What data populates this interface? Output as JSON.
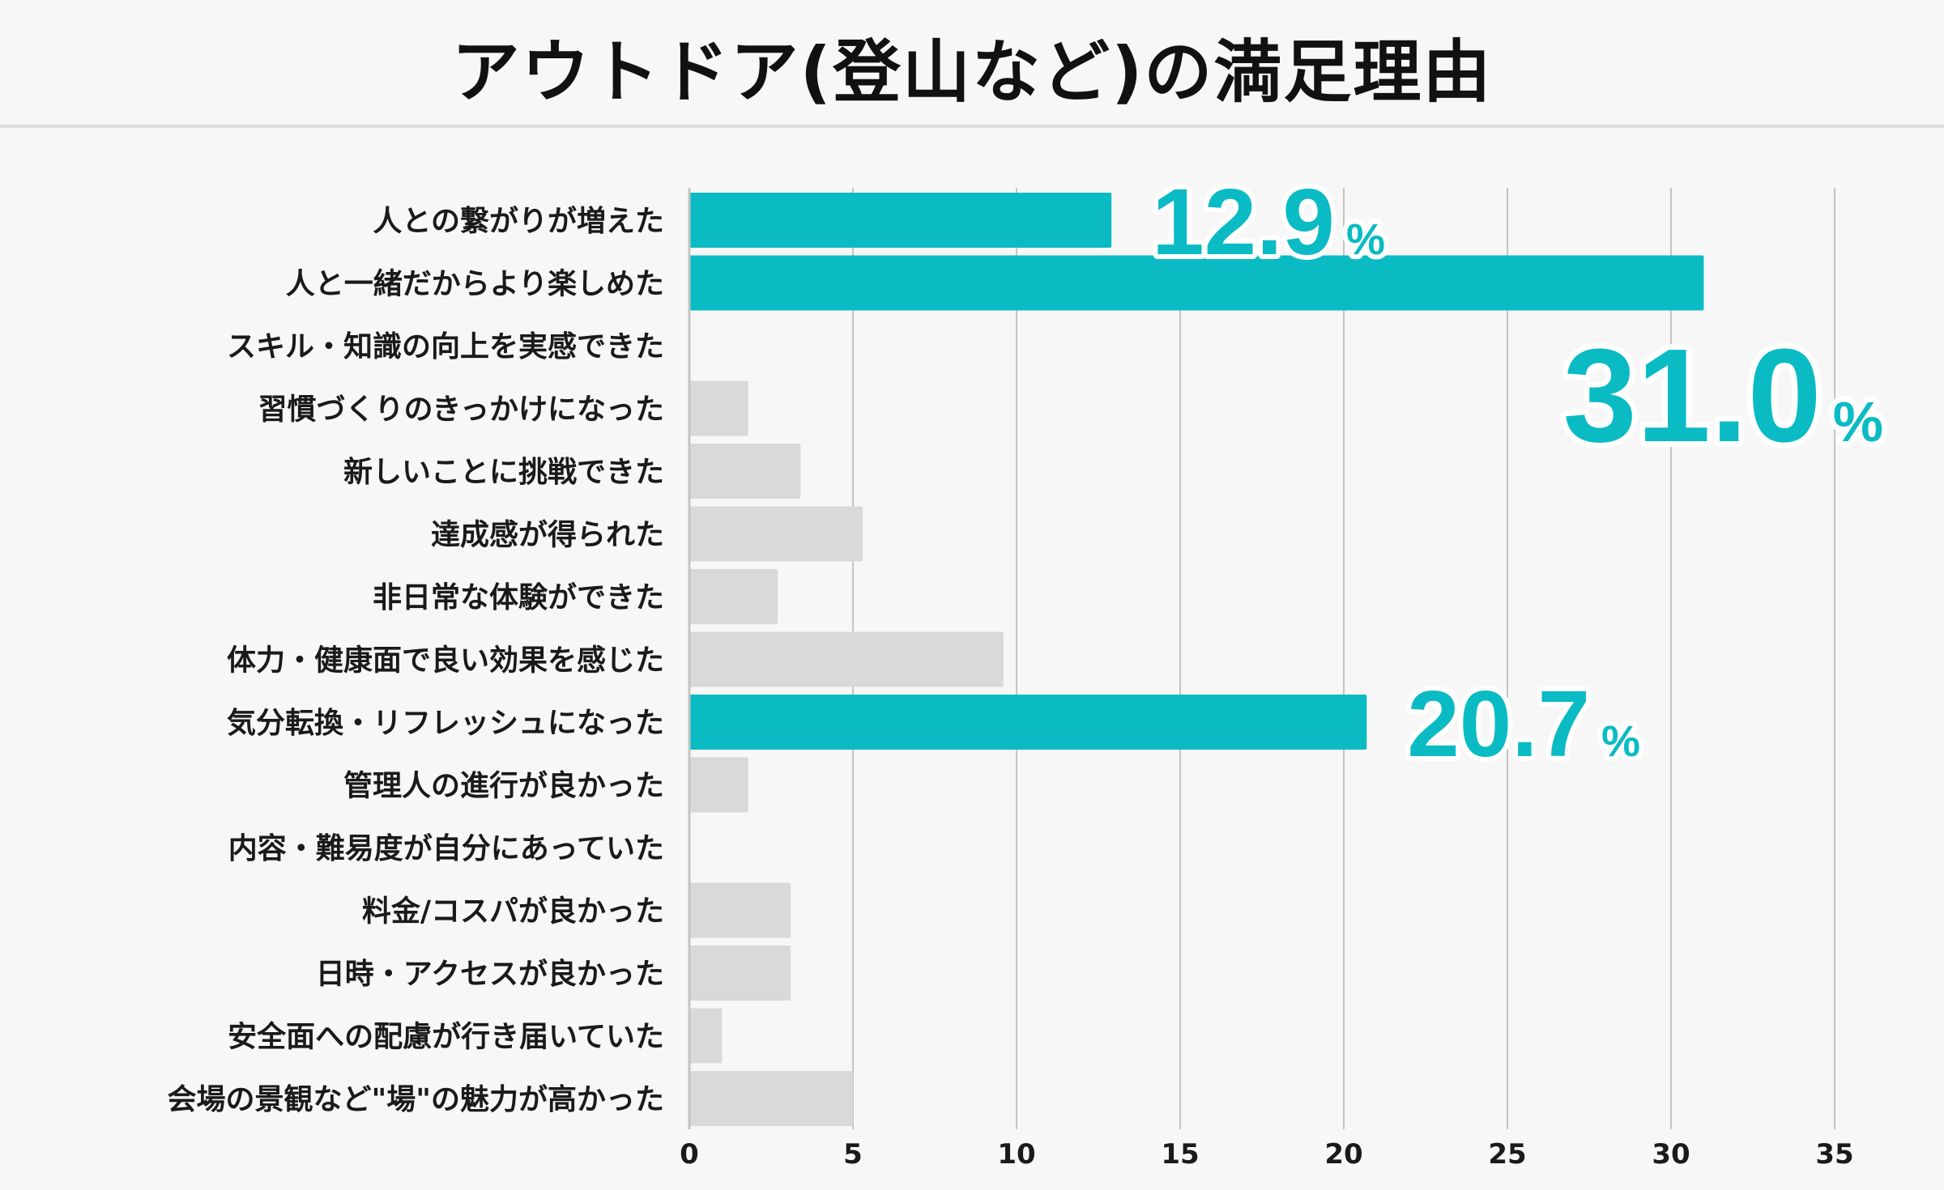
{
  "chart_data": {
    "type": "bar",
    "orientation": "horizontal",
    "title": "アウトドア(登山など)の満足理由",
    "xlabel": "",
    "ylabel": "",
    "xlim": [
      0,
      35
    ],
    "x_ticks": [
      0,
      5,
      10,
      15,
      20,
      25,
      30,
      35
    ],
    "grid": "vertical",
    "colors": {
      "highlight": "#0abbc4",
      "default": "#d9d9d9",
      "grid": "#c4c4c4",
      "text": "#1a1a1a"
    },
    "categories": [
      "人との繋がりが増えた",
      "人と一緒だからより楽しめた",
      "スキル・知識の向上を実感できた",
      "習慣づくりのきっかけになった",
      "新しいことに挑戦できた",
      "達成感が得られた",
      "非日常な体験ができた",
      "体力・健康面で良い効果を感じた",
      "気分転換・リフレッシュになった",
      "管理人の進行が良かった",
      "内容・難易度が自分にあっていた",
      "料金/コスパが良かった",
      "日時・アクセスが良かった",
      "安全面への配慮が行き届いていた",
      "会場の景観など\"場\"の魅力が高かった"
    ],
    "values": [
      12.9,
      31.0,
      0,
      1.8,
      3.4,
      5.3,
      2.7,
      9.6,
      20.7,
      1.8,
      0,
      3.1,
      3.1,
      1.0,
      5.0
    ],
    "highlighted": [
      true,
      true,
      false,
      false,
      false,
      false,
      false,
      false,
      true,
      false,
      false,
      false,
      false,
      false,
      false
    ],
    "annotations": [
      {
        "category_index": 0,
        "number": "12.9",
        "unit": "%"
      },
      {
        "category_index": 1,
        "number": "31.0",
        "unit": "%"
      },
      {
        "category_index": 8,
        "number": "20.7",
        "unit": "%"
      }
    ]
  }
}
